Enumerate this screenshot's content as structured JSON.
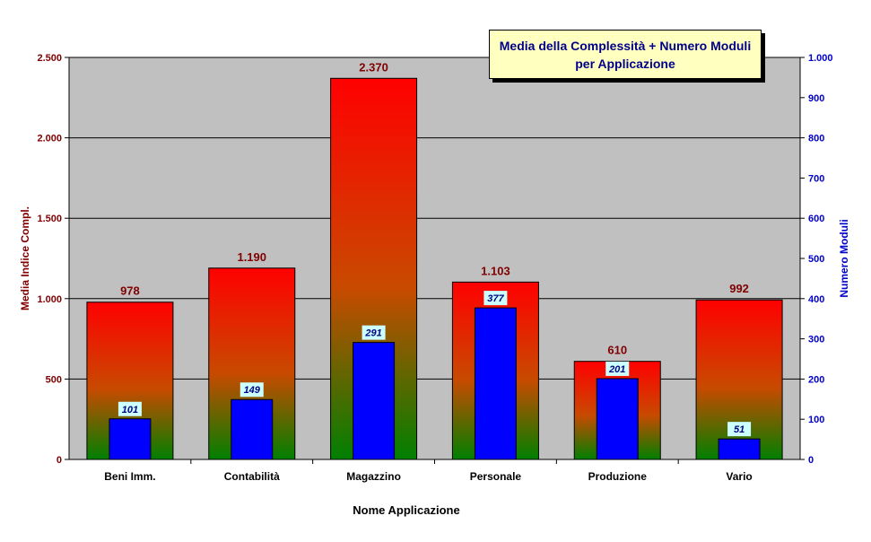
{
  "chart_data": {
    "type": "bar",
    "title_line1": "Media della Complessità + Numero Moduli",
    "title_line2": "per Applicazione",
    "xlabel": "Nome Applicazione",
    "ylabel": "Media Indice Compl.",
    "y2label": "Numero Moduli",
    "categories": [
      "Beni Imm.",
      "Contabilità",
      "Magazzino",
      "Personale",
      "Produzione",
      "Vario"
    ],
    "series": [
      {
        "name": "Media Indice Compl.",
        "axis": "left",
        "values": [
          978,
          1190,
          2370,
          1103,
          610,
          992
        ],
        "labels": [
          "978",
          "1.190",
          "2.370",
          "1.103",
          "610",
          "992"
        ],
        "color_top": "#ff0000",
        "color_bottom": "#008000"
      },
      {
        "name": "Numero Moduli",
        "axis": "right",
        "values": [
          101,
          149,
          291,
          377,
          201,
          51
        ],
        "labels": [
          "101",
          "149",
          "291",
          "377",
          "201",
          "51"
        ],
        "color": "#0000ff"
      }
    ],
    "ylim": [
      0,
      2500
    ],
    "yticks": [
      0,
      500,
      1000,
      1500,
      2000,
      2500
    ],
    "ytick_labels": [
      "0",
      "500",
      "1.000",
      "1.500",
      "2.000",
      "2.500"
    ],
    "y2lim": [
      0,
      1000
    ],
    "y2ticks": [
      0,
      100,
      200,
      300,
      400,
      500,
      600,
      700,
      800,
      900,
      1000
    ],
    "y2tick_labels": [
      "0",
      "100",
      "200",
      "300",
      "400",
      "500",
      "600",
      "700",
      "800",
      "900",
      "1.000"
    ],
    "grid": true,
    "plot_background": "#c0c0c0",
    "left_axis_color": "#800000",
    "right_axis_color": "#0000cc",
    "label_box_color": "#ccffff"
  }
}
